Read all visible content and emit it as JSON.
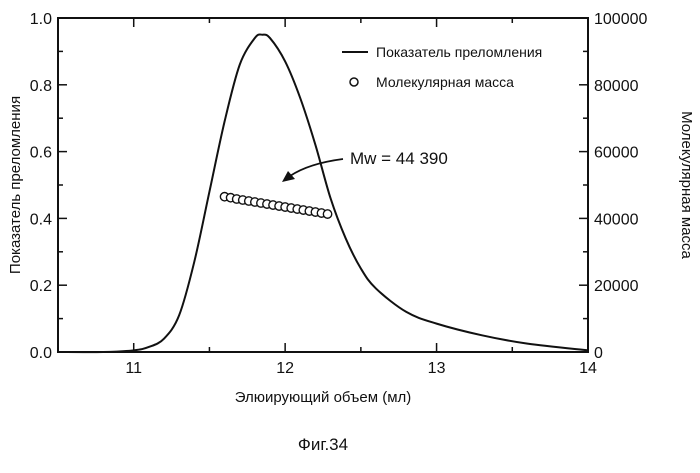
{
  "chart_data": {
    "type": "line",
    "xlabel": "Элюирующий объем (мл)",
    "ylabel_left": "Показатель преломления",
    "ylabel_right": "Молекулярная масса",
    "xlim": [
      10.5,
      14
    ],
    "ylim_left": [
      0,
      1.0
    ],
    "ylim_right": [
      0,
      100000
    ],
    "x_ticks": [
      "11",
      "12",
      "13",
      "14"
    ],
    "y_ticks_left": [
      "0.0",
      "0.2",
      "0.4",
      "0.6",
      "0.8",
      "1.0"
    ],
    "y_ticks_right": [
      "0",
      "20000",
      "40000",
      "60000",
      "80000",
      "100000"
    ],
    "legend_position": "top-right",
    "grid": false,
    "series": [
      {
        "name": "Показатель преломления",
        "axis": "left",
        "style": "line",
        "x": [
          10.5,
          10.8,
          11.0,
          11.1,
          11.2,
          11.3,
          11.4,
          11.5,
          11.6,
          11.7,
          11.8,
          11.85,
          11.9,
          12.0,
          12.1,
          12.2,
          12.3,
          12.4,
          12.5,
          12.6,
          12.8,
          13.0,
          13.3,
          13.6,
          14.0
        ],
        "y": [
          0.0,
          0.0,
          0.005,
          0.015,
          0.04,
          0.11,
          0.27,
          0.48,
          0.69,
          0.86,
          0.94,
          0.95,
          0.94,
          0.87,
          0.76,
          0.62,
          0.46,
          0.34,
          0.25,
          0.19,
          0.12,
          0.085,
          0.05,
          0.025,
          0.005
        ]
      },
      {
        "name": "Молекулярная масса",
        "axis": "right",
        "style": "markers",
        "x": [
          11.6,
          11.64,
          11.68,
          11.72,
          11.76,
          11.8,
          11.84,
          11.88,
          11.92,
          11.96,
          12.0,
          12.04,
          12.08,
          12.12,
          12.16,
          12.2,
          12.24,
          12.28
        ],
        "y": [
          46500,
          46200,
          45800,
          45500,
          45200,
          44900,
          44600,
          44300,
          44000,
          43700,
          43400,
          43100,
          42800,
          42500,
          42200,
          41900,
          41600,
          41300
        ]
      }
    ],
    "annotation": {
      "text": "Mw = 44 390",
      "x": 11.98,
      "y_right": 44390
    },
    "caption": "Фиг.34"
  }
}
